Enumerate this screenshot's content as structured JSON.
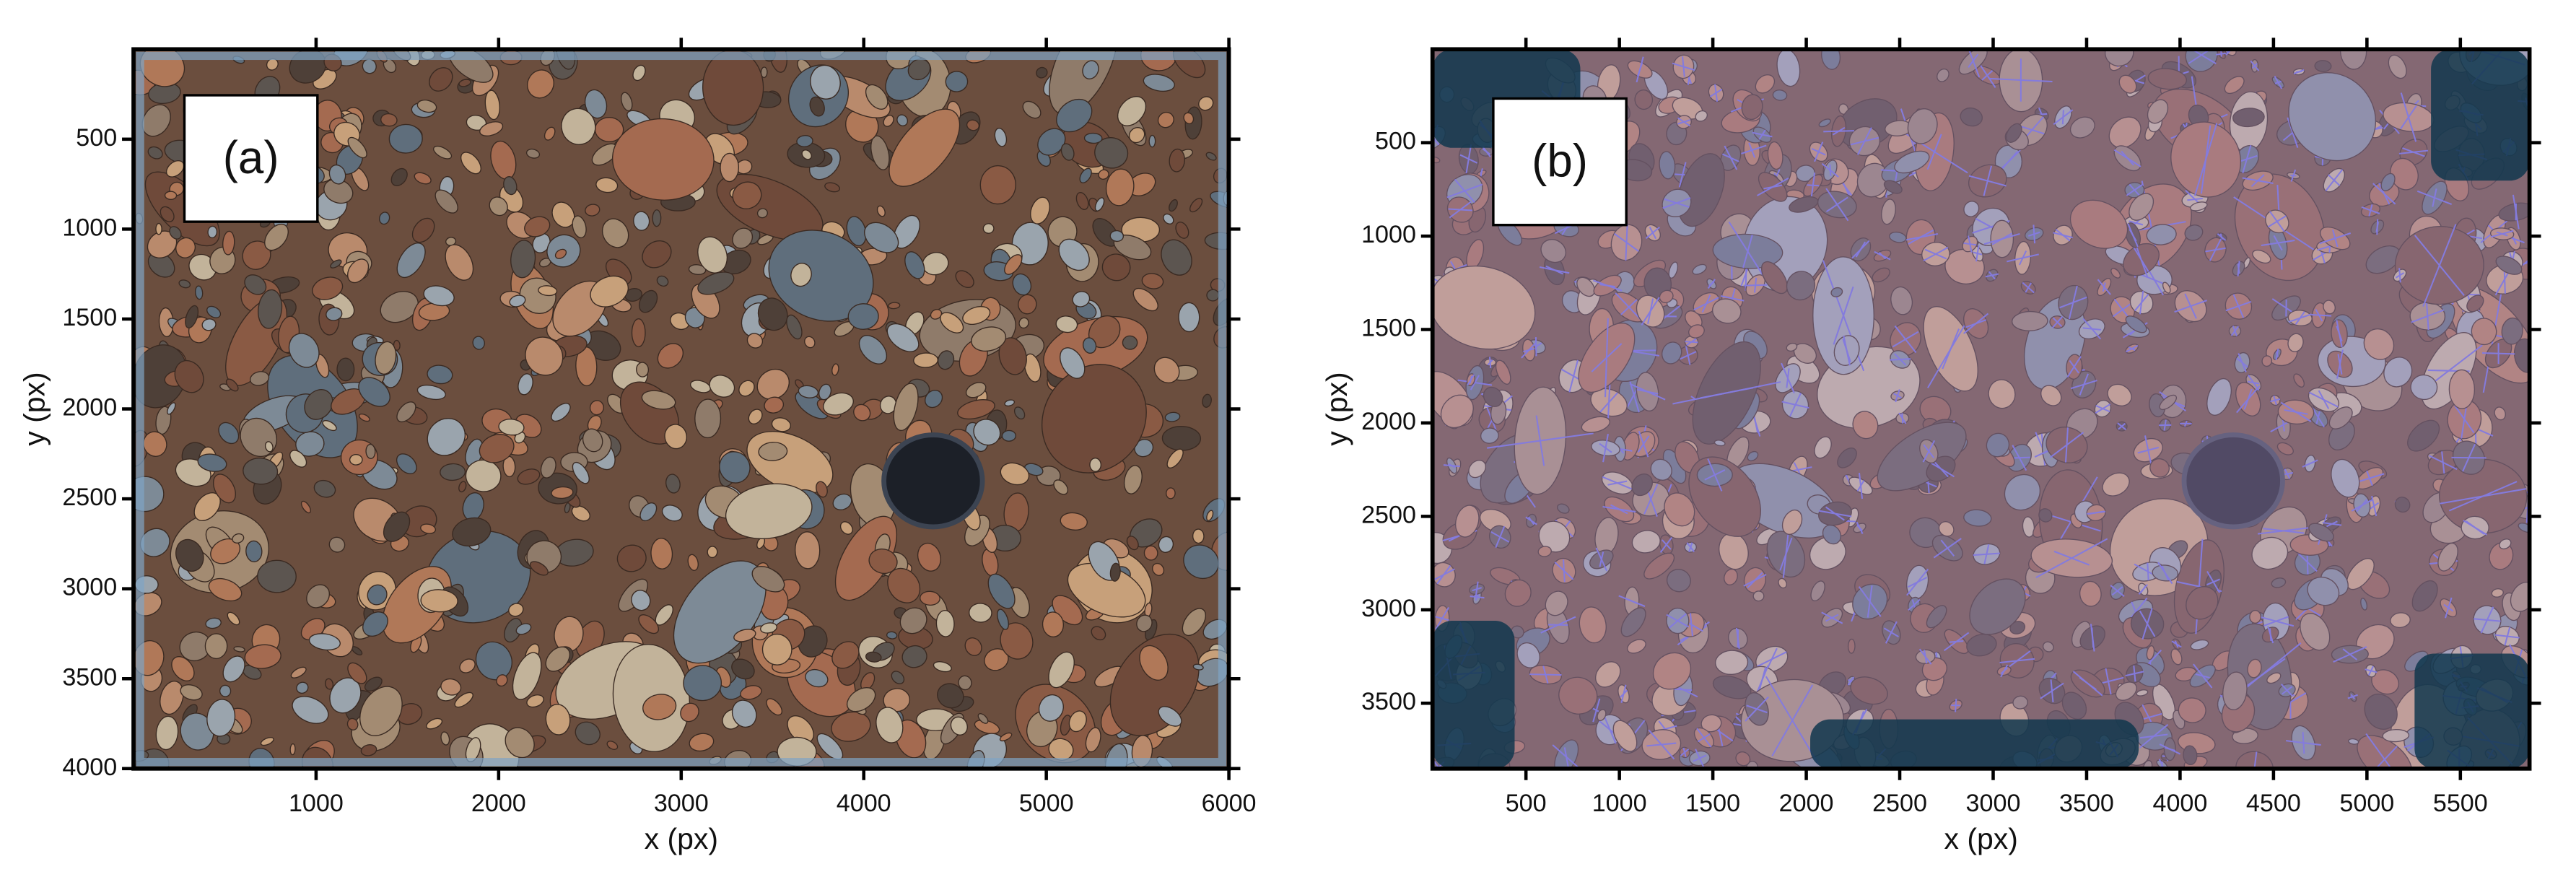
{
  "chart_data": [
    {
      "type": "image",
      "panel_label": "(a)",
      "xlabel": "x (px)",
      "ylabel": "y (px)",
      "xlim": [
        0,
        6000
      ],
      "ylim": [
        4000,
        0
      ],
      "xticks": [
        1000,
        2000,
        3000,
        4000,
        5000,
        6000
      ],
      "yticks": [
        500,
        1000,
        1500,
        2000,
        2500,
        3000,
        3500,
        4000
      ],
      "overlay": false
    },
    {
      "type": "image",
      "panel_label": "(b)",
      "xlabel": "x (px)",
      "ylabel": "y (px)",
      "xlim": [
        0,
        5870
      ],
      "ylim": [
        3850,
        0
      ],
      "xticks": [
        500,
        1000,
        1500,
        2000,
        2500,
        3000,
        3500,
        4000,
        4500,
        5000,
        5500
      ],
      "yticks": [
        500,
        1000,
        1500,
        2000,
        2500,
        3000,
        3500
      ],
      "overlay": true
    }
  ]
}
